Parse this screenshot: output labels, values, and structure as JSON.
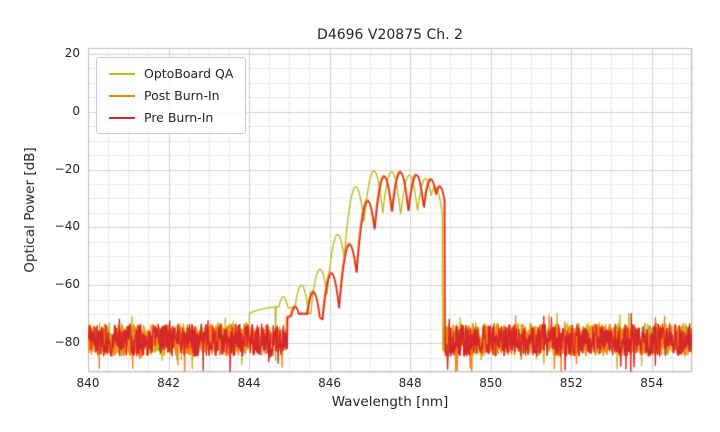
{
  "chart_data": {
    "type": "line",
    "title": "D4696 V20875 Ch. 2",
    "xlabel": "Wavelength [nm]",
    "ylabel": "Optical Power [dB]",
    "xlim": [
      840,
      855
    ],
    "ylim": [
      -90,
      22
    ],
    "x_ticks": [
      840,
      842,
      844,
      846,
      848,
      850,
      852,
      854
    ],
    "y_ticks": [
      20,
      0,
      -20,
      -40,
      -60,
      -80
    ],
    "x_minor_step": 0.5,
    "y_minor_step": 5,
    "grid": {
      "enabled": true,
      "major_color": "#d2d2d2",
      "minor_color": "#ebebeb"
    },
    "legend": {
      "position": "upper-left"
    },
    "series": [
      {
        "name": "OptoBoard QA",
        "color": "#bcbd22",
        "noise_floor_db": -78.5,
        "noise_amplitude_db": 5.5,
        "seed": 11,
        "mode_width_nm": 0.058,
        "band_nm": [
          844.0,
          848.8
        ],
        "modes": [
          [
            844.75,
            -67.5,
            0.5
          ],
          [
            844.38,
            -69
          ],
          [
            844.85,
            -64
          ],
          [
            845.3,
            -60
          ],
          [
            845.76,
            -54.5
          ],
          [
            846.2,
            -42.5
          ],
          [
            846.65,
            -26
          ],
          [
            847.1,
            -20.5
          ],
          [
            847.54,
            -20.8
          ],
          [
            847.98,
            -22
          ],
          [
            848.38,
            -23.2
          ],
          [
            848.62,
            -26
          ]
        ],
        "spikes": [
          [
            844.66,
            -86
          ]
        ]
      },
      {
        "name": "Post Burn-In",
        "color": "#ff7f0e",
        "noise_floor_db": -79,
        "noise_amplitude_db": 5.5,
        "seed": 23,
        "mode_width_nm": 0.055,
        "band_nm": [
          844.92,
          848.84
        ],
        "modes": [
          [
            845.33,
            -69.6,
            0.35
          ],
          [
            845.13,
            -67
          ],
          [
            845.58,
            -62
          ],
          [
            846.03,
            -55.5
          ],
          [
            846.48,
            -45.5
          ],
          [
            846.93,
            -30.5
          ],
          [
            847.34,
            -22.1
          ],
          [
            847.74,
            -20.6
          ],
          [
            848.14,
            -21.6
          ],
          [
            848.5,
            -23.1
          ],
          [
            848.72,
            -25.6
          ]
        ],
        "spikes": []
      },
      {
        "name": "Pre Burn-In",
        "color": "#d62728",
        "noise_floor_db": -79,
        "noise_amplitude_db": 5.5,
        "seed": 37,
        "mode_width_nm": 0.055,
        "band_nm": [
          844.95,
          848.86
        ],
        "modes": [
          [
            845.35,
            -70,
            0.35
          ],
          [
            845.15,
            -67.5
          ],
          [
            845.6,
            -62.5
          ],
          [
            846.05,
            -56
          ],
          [
            846.5,
            -46
          ],
          [
            846.95,
            -31
          ],
          [
            847.36,
            -22.5
          ],
          [
            847.76,
            -21
          ],
          [
            848.16,
            -22
          ],
          [
            848.52,
            -23.5
          ],
          [
            848.74,
            -26
          ]
        ],
        "spikes": [
          [
            844.72,
            -87
          ],
          [
            848.93,
            -89
          ]
        ]
      }
    ]
  }
}
